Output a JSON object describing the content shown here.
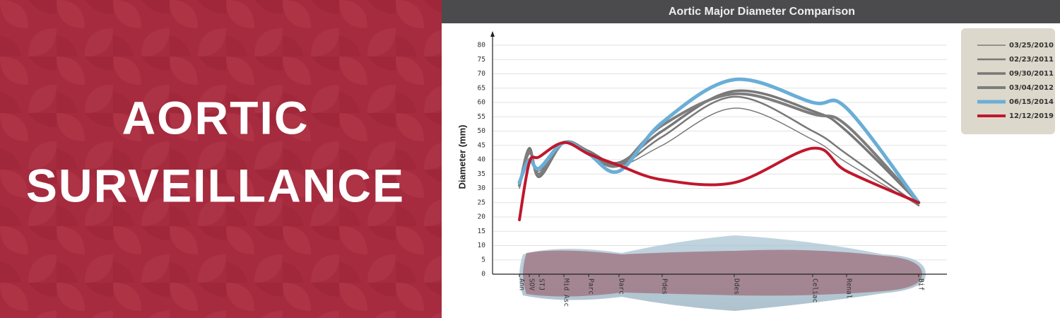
{
  "banner": {
    "title_lines": [
      "AORTIC",
      "SURVEILLANCE"
    ]
  },
  "chart_data": {
    "type": "line",
    "title": "Aortic Major Diameter Comparison",
    "y_label": "Diameter (mm)",
    "categories": [
      "Ann",
      "SOV",
      "STJ",
      "Mid Asc",
      "Parc",
      "Darc",
      "Pdes",
      "Ddes",
      "Celiac",
      "Renal",
      "Bif"
    ],
    "series": [
      {
        "name": "03/25/2010",
        "color": "#7a7a7a",
        "values": [
          30,
          42,
          36,
          46,
          43,
          38,
          45,
          58,
          47,
          39,
          24
        ]
      },
      {
        "name": "02/23/2011",
        "color": "#787878",
        "values": [
          31,
          44,
          35,
          46,
          43,
          38,
          48,
          62,
          50,
          42,
          24
        ]
      },
      {
        "name": "09/30/2011",
        "color": "#777777",
        "values": [
          31,
          44,
          34,
          46,
          43,
          39,
          50,
          64,
          57,
          50,
          25
        ]
      },
      {
        "name": "03/04/2012",
        "color": "#7d7d7d",
        "values": [
          31,
          43,
          35,
          46,
          42,
          38,
          52,
          63,
          56,
          52,
          25
        ]
      },
      {
        "name": "06/15/2014",
        "color": "#6aaed6",
        "values": [
          32,
          40,
          37,
          46,
          42,
          36,
          53,
          68,
          60,
          58,
          25
        ]
      },
      {
        "name": "12/12/2019",
        "color": "#c0172c",
        "values": [
          19,
          39,
          41,
          46,
          42,
          38,
          33,
          32,
          44,
          36,
          25
        ]
      }
    ],
    "ylim": [
      0,
      80
    ],
    "yticks": [
      0,
      5,
      10,
      15,
      20,
      25,
      30,
      35,
      40,
      45,
      50,
      55,
      60,
      65,
      70,
      75,
      80
    ],
    "grid": true,
    "legend": "top-right"
  }
}
